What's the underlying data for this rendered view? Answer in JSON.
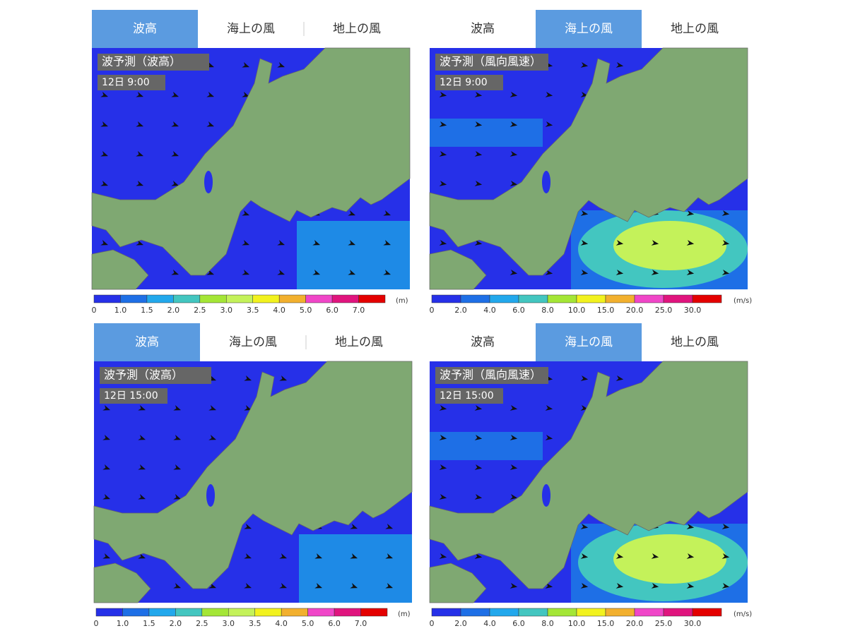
{
  "panels": [
    {
      "tabs": [
        "波高",
        "海上の風",
        "地上の風"
      ],
      "active_tab": 0,
      "map_title": "波予測（波高）",
      "time": "12日  9:00",
      "legend": {
        "labels": [
          "0",
          "1.0",
          "1.5",
          "2.0",
          "2.5",
          "3.0",
          "3.5",
          "4.0",
          "5.0",
          "6.0",
          "7.0"
        ],
        "unit": "(m)",
        "colors": [
          "#2630e8",
          "#1e6fe6",
          "#22a8ec",
          "#43c6c0",
          "#a4e636",
          "#c4f25a",
          "#f2f21e",
          "#f2b02e",
          "#f046c8",
          "#e0147e",
          "#e40000"
        ]
      }
    },
    {
      "tabs": [
        "波高",
        "海上の風",
        "地上の風"
      ],
      "active_tab": 1,
      "map_title": "波予測（風向風速）",
      "time": "12日  9:00",
      "legend": {
        "labels": [
          "0",
          "2.0",
          "4.0",
          "6.0",
          "8.0",
          "10.0",
          "15.0",
          "20.0",
          "25.0",
          "30.0"
        ],
        "unit": "(m/s)",
        "colors": [
          "#2630e8",
          "#1e6fe6",
          "#22a8ec",
          "#43c6c0",
          "#a4e636",
          "#f2f21e",
          "#f2b02e",
          "#f046c8",
          "#e0147e",
          "#e40000"
        ]
      }
    },
    {
      "tabs": [
        "波高",
        "海上の風",
        "地上の風"
      ],
      "active_tab": 0,
      "map_title": "波予測（波高）",
      "time": "12日 15:00",
      "legend": {
        "labels": [
          "0",
          "1.0",
          "1.5",
          "2.0",
          "2.5",
          "3.0",
          "3.5",
          "4.0",
          "5.0",
          "6.0",
          "7.0"
        ],
        "unit": "(m)",
        "colors": [
          "#2630e8",
          "#1e6fe6",
          "#22a8ec",
          "#43c6c0",
          "#a4e636",
          "#c4f25a",
          "#f2f21e",
          "#f2b02e",
          "#f046c8",
          "#e0147e",
          "#e40000"
        ]
      }
    },
    {
      "tabs": [
        "波高",
        "海上の風",
        "地上の風"
      ],
      "active_tab": 1,
      "map_title": "波予測（風向風速）",
      "time": "12日 15:00",
      "legend": {
        "labels": [
          "0",
          "2.0",
          "4.0",
          "6.0",
          "8.0",
          "10.0",
          "15.0",
          "20.0",
          "25.0",
          "30.0"
        ],
        "unit": "(m/s)",
        "colors": [
          "#2630e8",
          "#1e6fe6",
          "#22a8ec",
          "#43c6c0",
          "#a4e636",
          "#f2f21e",
          "#f2b02e",
          "#f046c8",
          "#e0147e",
          "#e40000"
        ]
      }
    }
  ]
}
